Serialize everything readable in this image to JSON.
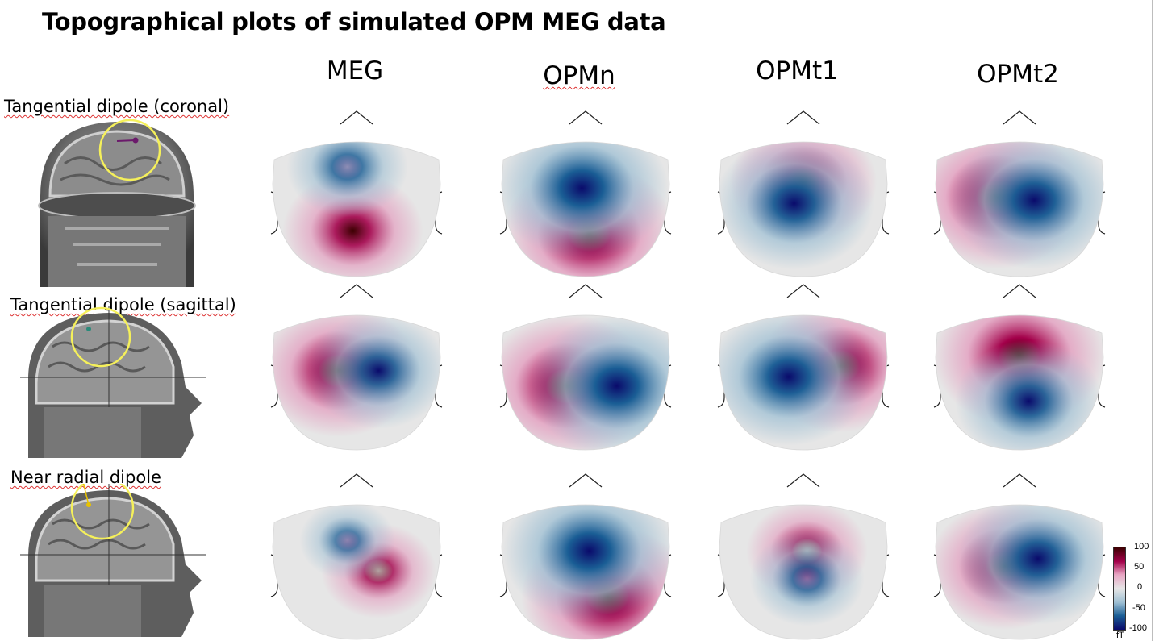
{
  "title": "Topographical plots of simulated OPM MEG data",
  "columns": [
    "MEG",
    "OPMn",
    "OPMt1",
    "OPMt2"
  ],
  "rows": [
    {
      "label": "Tangential dipole (coronal)",
      "view": "coronal"
    },
    {
      "label": "Tangential dipole (sagittal)",
      "view": "sagittal"
    },
    {
      "label": "Near radial dipole",
      "view": "sagittal"
    }
  ],
  "maps": [
    [
      {
        "pos": {
          "dx": 0.48,
          "dy": 0.7,
          "s": 0.75
        },
        "neg": {
          "dx": 0.45,
          "dy": 0.28,
          "s": 0.6
        },
        "angle": 90
      },
      {
        "pos": {
          "dx": 0.52,
          "dy": 0.72,
          "s": 1.0
        },
        "neg": {
          "dx": 0.48,
          "dy": 0.42,
          "s": 1.0
        },
        "angle": 90
      },
      {
        "pos": {
          "dx": 0.5,
          "dy": 0.38,
          "s": 0.8
        },
        "neg": {
          "dx": 0.45,
          "dy": 0.52,
          "s": 0.9
        },
        "angle": 0
      },
      {
        "pos": {
          "dx": 0.38,
          "dy": 0.48,
          "s": 1.0
        },
        "neg": {
          "dx": 0.58,
          "dy": 0.5,
          "s": 0.95
        },
        "angle": 0
      }
    ],
    [
      {
        "pos": {
          "dx": 0.4,
          "dy": 0.48,
          "s": 0.9
        },
        "neg": {
          "dx": 0.62,
          "dy": 0.48,
          "s": 0.75
        },
        "angle": 0
      },
      {
        "pos": {
          "dx": 0.4,
          "dy": 0.58,
          "s": 1.0
        },
        "neg": {
          "dx": 0.67,
          "dy": 0.58,
          "s": 1.0
        },
        "angle": 0
      },
      {
        "pos": {
          "dx": 0.7,
          "dy": 0.45,
          "s": 0.9
        },
        "neg": {
          "dx": 0.42,
          "dy": 0.52,
          "s": 0.95
        },
        "angle": 0
      },
      {
        "pos": {
          "dx": 0.5,
          "dy": 0.38,
          "s": 1.0
        },
        "neg": {
          "dx": 0.55,
          "dy": 0.68,
          "s": 0.8
        },
        "angle": 90
      }
    ],
    [
      {
        "pos": {
          "dx": 0.62,
          "dy": 0.55,
          "s": 0.55
        },
        "neg": {
          "dx": 0.45,
          "dy": 0.35,
          "s": 0.4
        },
        "angle": 45
      },
      {
        "pos": {
          "dx": 0.62,
          "dy": 0.72,
          "s": 1.0
        },
        "neg": {
          "dx": 0.52,
          "dy": 0.42,
          "s": 1.0
        },
        "angle": 80
      },
      {
        "pos": {
          "dx": 0.52,
          "dy": 0.42,
          "s": 0.6
        },
        "neg": {
          "dx": 0.52,
          "dy": 0.6,
          "s": 0.55
        },
        "angle": 90
      },
      {
        "pos": {
          "dx": 0.42,
          "dy": 0.52,
          "s": 0.85
        },
        "neg": {
          "dx": 0.6,
          "dy": 0.47,
          "s": 0.9
        },
        "angle": 0
      }
    ]
  ],
  "colorbar": {
    "ticks": [
      "100",
      "50",
      "0",
      "-50",
      "-100"
    ],
    "unit": "fT",
    "colors": [
      "#3b0000",
      "#a3004a",
      "#e8a5c3",
      "#e6e6e6",
      "#9ebfd3",
      "#1a5e95",
      "#0a0a6b"
    ]
  }
}
